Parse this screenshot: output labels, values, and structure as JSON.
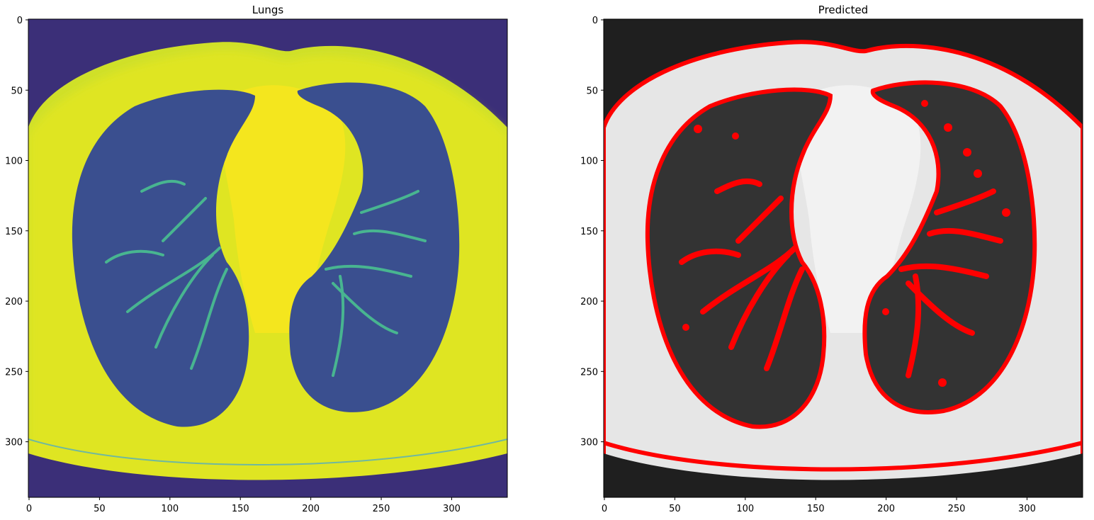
{
  "figure": {
    "panels": [
      {
        "title": "Lungs",
        "colormap": "viridis",
        "colors": {
          "background": "#3b2f78",
          "tissue": "#d7e21f",
          "bright": "#f4e61e",
          "lung": "#3a5a98",
          "vessel": "#48b590"
        },
        "xticks": [
          "0",
          "50",
          "100",
          "150",
          "200",
          "250",
          "300"
        ],
        "yticks": [
          "0",
          "50",
          "100",
          "150",
          "200",
          "250",
          "300"
        ]
      },
      {
        "title": "Predicted",
        "colormap": "gray",
        "colors": {
          "background": "#1f1f1f",
          "tissue": "#e6e6e6",
          "lung": "#333333",
          "vessel": "#8a8a8a",
          "contour": "#ff0000"
        },
        "xticks": [
          "0",
          "50",
          "100",
          "150",
          "200",
          "250",
          "300"
        ],
        "yticks": [
          "0",
          "50",
          "100",
          "150",
          "200",
          "250",
          "300"
        ]
      }
    ]
  }
}
